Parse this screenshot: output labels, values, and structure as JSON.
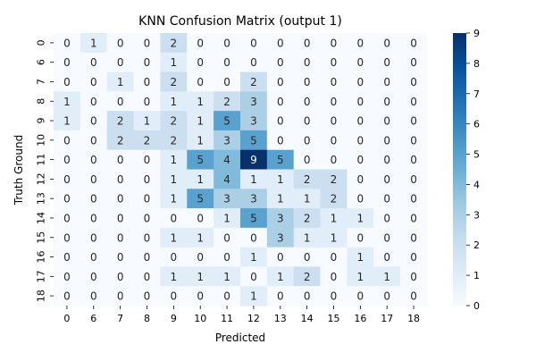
{
  "chart_data": {
    "type": "heatmap",
    "title": "KNN Confusion Matrix (output 1)",
    "xlabel": "Predicted",
    "ylabel": "Truth Ground",
    "x_categories": [
      "0",
      "6",
      "7",
      "8",
      "9",
      "10",
      "11",
      "12",
      "13",
      "14",
      "15",
      "16",
      "17",
      "18"
    ],
    "y_categories": [
      "0",
      "6",
      "7",
      "8",
      "9",
      "10",
      "11",
      "12",
      "13",
      "14",
      "15",
      "16",
      "17",
      "18"
    ],
    "values": [
      [
        0,
        1,
        0,
        0,
        2,
        0,
        0,
        0,
        0,
        0,
        0,
        0,
        0,
        0
      ],
      [
        0,
        0,
        0,
        0,
        1,
        0,
        0,
        0,
        0,
        0,
        0,
        0,
        0,
        0
      ],
      [
        0,
        0,
        1,
        0,
        2,
        0,
        0,
        2,
        0,
        0,
        0,
        0,
        0,
        0
      ],
      [
        1,
        0,
        0,
        0,
        1,
        1,
        2,
        3,
        0,
        0,
        0,
        0,
        0,
        0
      ],
      [
        1,
        0,
        2,
        1,
        2,
        1,
        5,
        3,
        0,
        0,
        0,
        0,
        0,
        0
      ],
      [
        0,
        0,
        2,
        2,
        2,
        1,
        3,
        5,
        0,
        0,
        0,
        0,
        0,
        0
      ],
      [
        0,
        0,
        0,
        0,
        1,
        5,
        4,
        9,
        5,
        0,
        0,
        0,
        0,
        0
      ],
      [
        0,
        0,
        0,
        0,
        1,
        1,
        4,
        1,
        1,
        2,
        2,
        0,
        0,
        0
      ],
      [
        0,
        0,
        0,
        0,
        1,
        5,
        3,
        3,
        1,
        1,
        2,
        0,
        0,
        0
      ],
      [
        0,
        0,
        0,
        0,
        0,
        0,
        1,
        5,
        3,
        2,
        1,
        1,
        0,
        0
      ],
      [
        0,
        0,
        0,
        0,
        1,
        1,
        0,
        0,
        3,
        1,
        1,
        0,
        0,
        0
      ],
      [
        0,
        0,
        0,
        0,
        0,
        0,
        0,
        1,
        0,
        0,
        0,
        1,
        0,
        0
      ],
      [
        0,
        0,
        0,
        0,
        1,
        1,
        1,
        0,
        1,
        2,
        0,
        1,
        1,
        0
      ],
      [
        0,
        0,
        0,
        0,
        0,
        0,
        0,
        1,
        0,
        0,
        0,
        0,
        0,
        0
      ]
    ],
    "colorbar": {
      "vmin": 0,
      "vmax": 9,
      "ticks": [
        0,
        1,
        2,
        3,
        4,
        5,
        6,
        7,
        8,
        9
      ],
      "colormap": "Blues",
      "colors": [
        "#f7fbff",
        "#deebf7",
        "#c6dbef",
        "#9ecae1",
        "#6baed6",
        "#4292c6",
        "#2171b5",
        "#08519c",
        "#08306b"
      ]
    },
    "grid": false
  }
}
